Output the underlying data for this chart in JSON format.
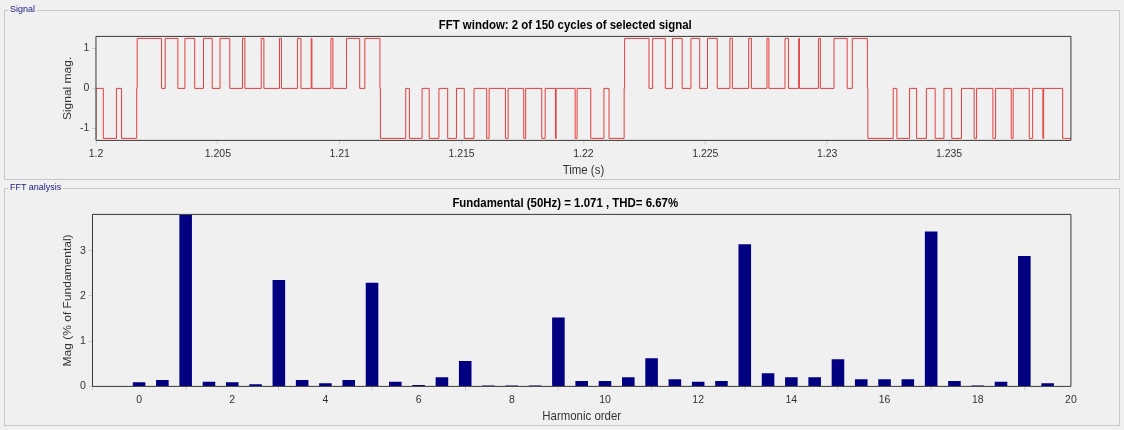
{
  "chart_data": [
    {
      "type": "step",
      "title": "FFT window: 2 of 150 cycles of selected signal",
      "xlabel": "Time (s)",
      "ylabel": "Signal mag.",
      "annotations": [
        "Signal"
      ],
      "color": "#e03a3a",
      "xlim": [
        1.2,
        1.24
      ],
      "xticks": [
        1.2,
        1.205,
        1.21,
        1.215,
        1.22,
        1.225,
        1.23,
        1.235
      ],
      "ylim": [
        -1.3,
        1.3
      ],
      "yticks": [
        -1,
        0,
        1
      ],
      "grid": false,
      "x": [
        1.2,
        1.2003,
        1.20084,
        1.20105,
        1.20167,
        1.20169,
        1.20269,
        1.20284,
        1.20336,
        1.20365,
        1.20405,
        1.20441,
        1.20477,
        1.20509,
        1.20549,
        1.20601,
        1.20611,
        1.20678,
        1.20689,
        1.20753,
        1.20761,
        1.20827,
        1.20841,
        1.20883,
        1.20886,
        1.20964,
        1.20972,
        1.21028,
        1.21082,
        1.21103,
        1.21165,
        1.21167,
        1.21271,
        1.21286,
        1.21338,
        1.21367,
        1.21407,
        1.21443,
        1.21479,
        1.21511,
        1.21551,
        1.21603,
        1.21613,
        1.2168,
        1.21691,
        1.21755,
        1.21763,
        1.21829,
        1.21843,
        1.21885,
        1.21888,
        1.21966,
        1.21974,
        1.2203,
        1.22084,
        1.22105,
        1.22167,
        1.22169,
        1.22269,
        1.22284,
        1.22336,
        1.22365,
        1.22405,
        1.22441,
        1.22477,
        1.22509,
        1.22549,
        1.22601,
        1.22611,
        1.22678,
        1.22689,
        1.22753,
        1.22761,
        1.22827,
        1.22841,
        1.22883,
        1.22886,
        1.22964,
        1.22972,
        1.23028,
        1.23082,
        1.23103,
        1.23165,
        1.23167,
        1.23271,
        1.23286,
        1.23338,
        1.23367,
        1.23407,
        1.23443,
        1.23479,
        1.23511,
        1.23551,
        1.23603,
        1.23613,
        1.2368,
        1.23691,
        1.23755,
        1.23763,
        1.23829,
        1.23843,
        1.23885,
        1.23888,
        1.23966,
        1.23974,
        1.24
      ],
      "values": [
        -1.25,
        0,
        -1.25,
        0,
        -1.25,
        0,
        1.25,
        0,
        1.25,
        0,
        1.25,
        0,
        1.25,
        0,
        1.25,
        0,
        1.25,
        0,
        1.25,
        0,
        1.25,
        0,
        1.25,
        0,
        1.25,
        0,
        1.25,
        0,
        1.25,
        0,
        1.25,
        0,
        -1.25,
        0,
        -1.25,
        0,
        -1.25,
        0,
        -1.25,
        0,
        -1.25,
        0,
        -1.25,
        0,
        -1.25,
        0,
        -1.25,
        0,
        -1.25,
        0,
        -1.25,
        0,
        -1.25,
        0,
        -1.25,
        0,
        -1.25,
        0,
        1.25,
        0,
        1.25,
        0,
        1.25,
        0,
        1.25,
        0,
        1.25,
        0,
        1.25,
        0,
        1.25,
        0,
        1.25,
        0,
        1.25,
        0,
        1.25,
        0,
        1.25,
        0,
        1.25,
        0,
        1.25,
        0,
        -1.25,
        0,
        -1.25,
        0,
        -1.25,
        0,
        -1.25,
        0,
        -1.25,
        0,
        -1.25,
        0,
        -1.25,
        0,
        -1.25,
        0,
        -1.25,
        0,
        -1.25,
        0,
        -1.25,
        -1.25
      ]
    },
    {
      "type": "bar",
      "title": "Fundamental (50Hz) = 1.071 , THD= 6.67%",
      "xlabel": "Harmonic order",
      "ylabel": "Mag (% of Fundamental)",
      "annotations": [
        "FFT analysis"
      ],
      "color": "#000080",
      "xlim": [
        -1,
        20
      ],
      "xticks": [
        0,
        2,
        4,
        6,
        8,
        10,
        12,
        14,
        16,
        18,
        20
      ],
      "ylim": [
        0,
        3.8
      ],
      "yticks": [
        0,
        1,
        2,
        3
      ],
      "grid": false,
      "x": [
        0,
        0.5,
        1,
        1.5,
        2,
        2.5,
        3,
        3.5,
        4,
        4.5,
        5,
        5.5,
        6,
        6.5,
        7,
        7.5,
        8,
        8.5,
        9,
        9.5,
        10,
        10.5,
        11,
        11.5,
        12,
        12.5,
        13,
        13.5,
        14,
        14.5,
        15,
        15.5,
        16,
        16.5,
        17,
        17.5,
        18,
        18.5,
        19,
        19.5
      ],
      "values": [
        0.09,
        0.14,
        3.8,
        0.1,
        0.09,
        0.05,
        2.35,
        0.14,
        0.07,
        0.14,
        2.29,
        0.1,
        0.03,
        0.2,
        0.56,
        0.02,
        0.02,
        0.02,
        1.52,
        0.12,
        0.12,
        0.2,
        0.62,
        0.16,
        0.1,
        0.12,
        3.14,
        0.29,
        0.2,
        0.2,
        0.6,
        0.16,
        0.16,
        0.16,
        3.42,
        0.12,
        0.02,
        0.1,
        2.88,
        0.07
      ]
    }
  ]
}
